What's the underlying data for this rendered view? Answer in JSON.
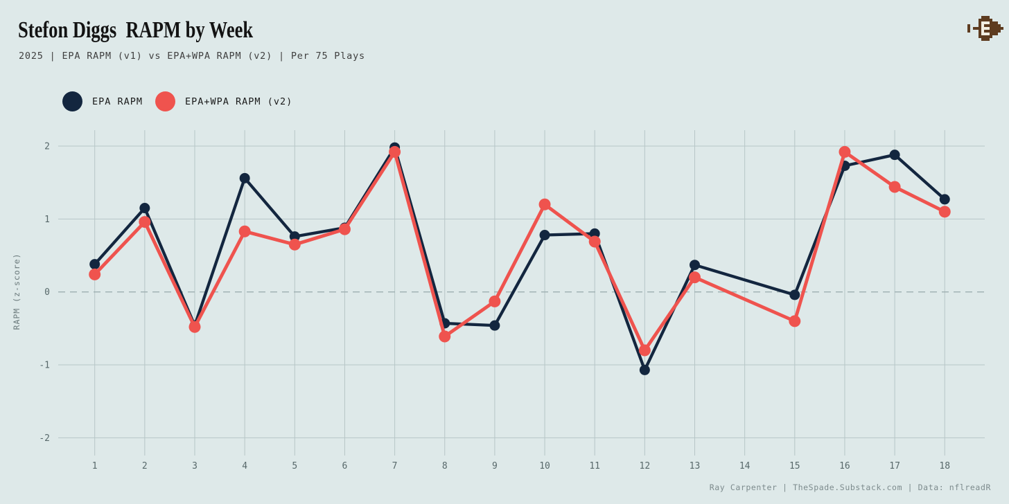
{
  "page": {
    "background": "#dee9e9"
  },
  "header": {
    "title": "Stefon Diggs  RAPM by Week",
    "subtitle": "2025 | EPA RAPM (v1) vs EPA+WPA RAPM (v2) | Per 75 Plays"
  },
  "logo": {
    "icon": "pixel-football-icon",
    "color": "#5e3c20",
    "lace_color": "#f2eee2"
  },
  "legend": {
    "items": [
      {
        "label": "EPA RAPM",
        "color": "#13263f"
      },
      {
        "label": "EPA+WPA RAPM (v2)",
        "color": "#ef534e"
      }
    ]
  },
  "footer": {
    "credit": "Ray Carpenter | TheSpade.Substack.com | Data: nflreadR"
  },
  "chart_data": {
    "type": "line",
    "title": "Stefon Diggs RAPM by Week",
    "xlabel": "",
    "ylabel": "RAPM (z-score)",
    "x": [
      1,
      2,
      3,
      4,
      5,
      6,
      7,
      8,
      9,
      10,
      11,
      12,
      13,
      15,
      16,
      17,
      18
    ],
    "x_ticks": [
      1,
      2,
      3,
      4,
      5,
      6,
      7,
      8,
      9,
      10,
      11,
      12,
      13,
      14,
      15,
      16,
      17,
      18
    ],
    "missing_weeks": [
      14
    ],
    "series": [
      {
        "name": "EPA RAPM",
        "color": "#13263f",
        "values": [
          0.38,
          1.15,
          -0.46,
          1.56,
          0.76,
          0.88,
          1.98,
          -0.43,
          -0.46,
          0.78,
          0.8,
          -1.07,
          0.37,
          -0.04,
          1.73,
          1.88,
          1.27
        ]
      },
      {
        "name": "EPA+WPA RAPM (v2)",
        "color": "#ef534e",
        "values": [
          0.24,
          0.96,
          -0.48,
          0.83,
          0.65,
          0.86,
          1.92,
          -0.61,
          -0.13,
          1.2,
          0.69,
          -0.8,
          0.2,
          -0.4,
          1.92,
          1.44,
          1.1
        ]
      }
    ],
    "yticks": [
      -2,
      -1,
      0,
      1,
      2
    ],
    "ylim": [
      -2.25,
      2.25
    ],
    "grid": true,
    "zero_line_style": "dashed",
    "grid_color": "#b7c6c7",
    "zero_line_color": "#9daeb0",
    "tick_color": "#57686a",
    "axis_title_color": "#6b7a7c",
    "legend_position": "top-left"
  }
}
